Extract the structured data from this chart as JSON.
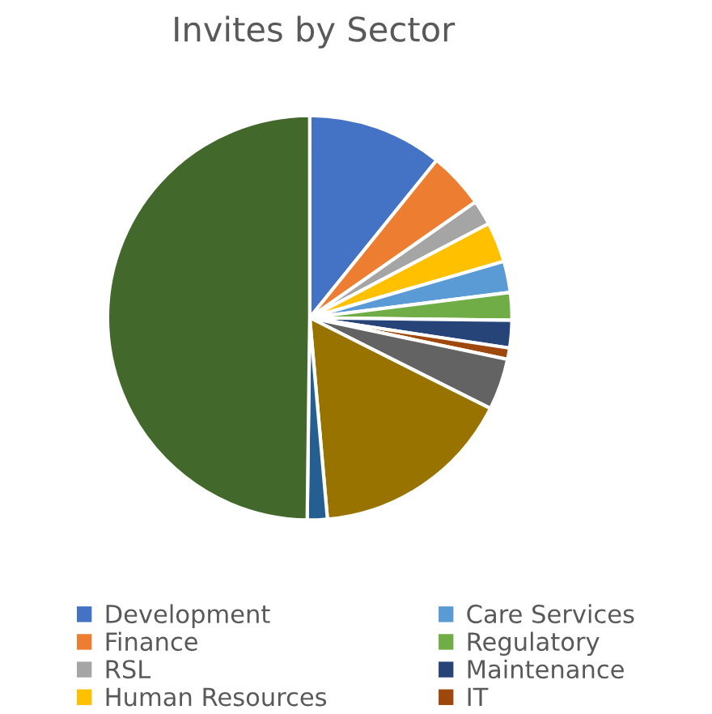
{
  "chart_data": {
    "type": "pie",
    "title": "Invites by Sector",
    "categories": [
      "Development",
      "Finance",
      "RSL",
      "Human Resources",
      "Care Services",
      "Regulatory",
      "Maintenance",
      "IT",
      null,
      null,
      null,
      null
    ],
    "values": [
      10.8,
      4.5,
      2.0,
      3.2,
      2.5,
      2.2,
      2.2,
      0.9,
      4.1,
      16.2,
      1.6,
      49.8
    ],
    "colors": [
      "#4472c4",
      "#ed7d31",
      "#a5a5a5",
      "#ffc000",
      "#5b9bd5",
      "#70ad47",
      "#264478",
      "#9e480e",
      "#636363",
      "#997300",
      "#255e91",
      "#43682b"
    ],
    "legend": "bottom"
  }
}
